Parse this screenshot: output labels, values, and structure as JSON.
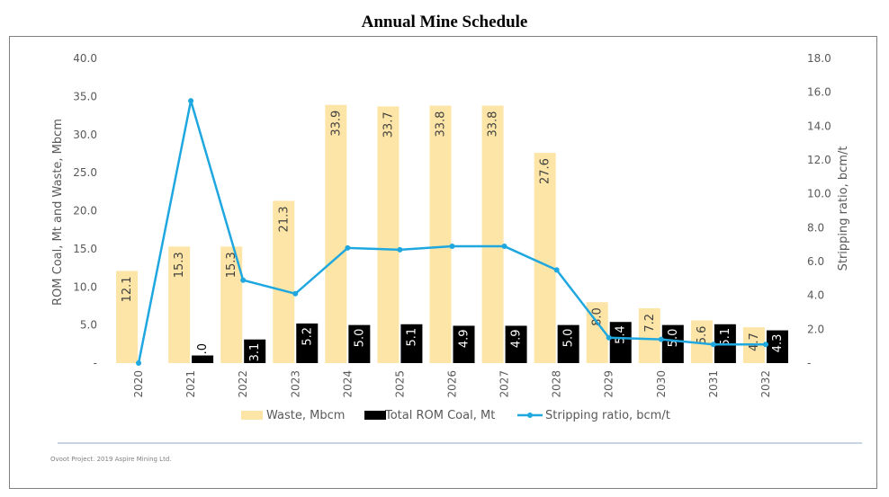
{
  "chart_data": {
    "type": "bar",
    "title": "Annual Mine Schedule",
    "categories": [
      "2020",
      "2021",
      "2022",
      "2023",
      "2024",
      "2025",
      "2026",
      "2027",
      "2028",
      "2029",
      "2030",
      "2031",
      "2032"
    ],
    "series": [
      {
        "name": "Waste, Mbcm",
        "kind": "bar",
        "axis": "left",
        "color": "#fce5a6",
        "values": [
          12.1,
          15.3,
          15.3,
          21.3,
          33.9,
          33.7,
          33.8,
          33.8,
          27.6,
          8.0,
          7.2,
          5.6,
          4.7
        ],
        "labels": [
          "12.1",
          "15.3",
          "15.3",
          "21.3",
          "33.9",
          "33.7",
          "33.8",
          "33.8",
          "27.6",
          "8.0",
          "7.2",
          "5.6",
          "4.7"
        ]
      },
      {
        "name": "Total ROM Coal, Mt",
        "kind": "bar",
        "axis": "left",
        "color": "#000000",
        "values": [
          0,
          1.0,
          3.1,
          5.2,
          5.0,
          5.1,
          4.9,
          4.9,
          5.0,
          5.4,
          5.0,
          5.1,
          4.3
        ],
        "labels": [
          "",
          "1.0",
          "3.1",
          "5.2",
          "5.0",
          "5.1",
          "4.9",
          "4.9",
          "5.0",
          "5.4",
          "5.0",
          "5.1",
          "4.3"
        ]
      },
      {
        "name": "Stripping ratio, bcm/t",
        "kind": "line",
        "axis": "right",
        "color": "#1fa7e0",
        "values": [
          0,
          15.5,
          4.9,
          4.1,
          6.8,
          6.7,
          6.9,
          6.9,
          5.5,
          1.5,
          1.4,
          1.1,
          1.1
        ]
      }
    ],
    "ylabel_left": "ROM Coal, Mt and Waste, Mbcm",
    "ylabel_right": "Stripping ratio, bcm/t",
    "ylim_left": [
      0,
      40
    ],
    "ylim_right": [
      0,
      18
    ],
    "yticks_left": [
      "-",
      "5.0",
      "10.0",
      "15.0",
      "20.0",
      "25.0",
      "30.0",
      "35.0",
      "40.0"
    ],
    "yticks_right": [
      "-",
      "2.0",
      "4.0",
      "6.0",
      "8.0",
      "10.0",
      "12.0",
      "14.0",
      "16.0",
      "18.0"
    ],
    "grid": false,
    "legend_position": "bottom"
  },
  "footer": "Ovoot Project. 2019  Aspire Mining Ltd."
}
